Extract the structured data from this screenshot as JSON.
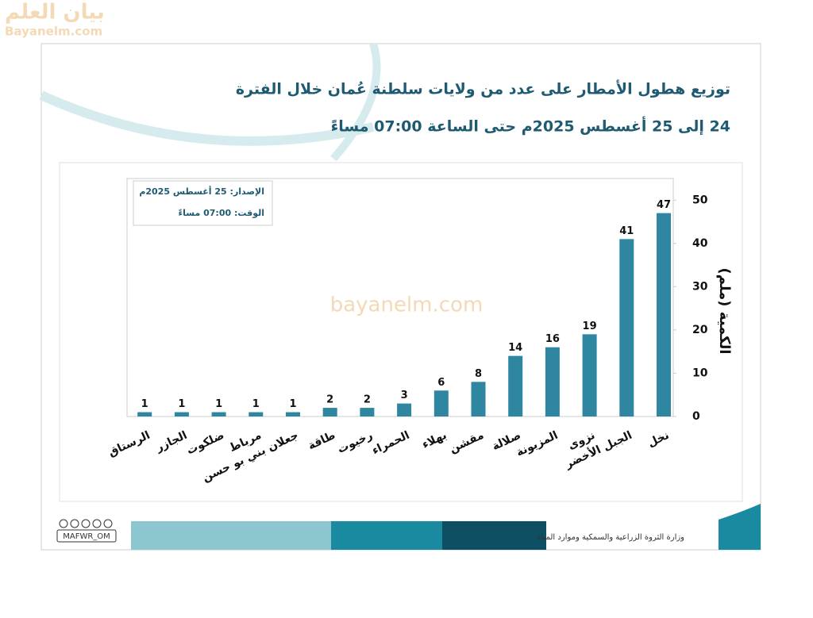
{
  "watermark": {
    "logo": "بيان العلم",
    "site": "Bayanelm.com",
    "center": "bayanelm.com"
  },
  "chart_data": {
    "type": "bar",
    "title": "توزيع هطول الأمطار على عدد من ولايات سلطنة عُمان خلال الفترة",
    "subtitle": "24 إلى 25 أغسطس 2025م حتى الساعة 07:00 مساءً",
    "info": [
      "الإصدار: 25 أغسطس 2025م",
      "الوقت:  07:00 مساءً"
    ],
    "y_label": "الكمية (ملم)",
    "categories": [
      "نخل",
      "الجبل الأخضر",
      "نزوى",
      "المزيونة",
      "صلالة",
      "مقشن",
      "بهلاء",
      "الحمراء",
      "رخيوت",
      "طاقة",
      "جعلان بني بو حسن",
      "مرباط",
      "ضلكوت",
      "الجازر",
      "الرستاق"
    ],
    "values": [
      47,
      41,
      19,
      16,
      14,
      8,
      6,
      3,
      2,
      2,
      1,
      1,
      1,
      1,
      1
    ],
    "color": "#2e86a0",
    "ylim": [
      0,
      55
    ],
    "yticks": [
      0,
      10,
      20,
      30,
      40,
      50
    ],
    "grid": false
  },
  "footer": {
    "ministry": "وزارة الثروة الزراعية والسمكية وموارد المياه",
    "handle": "MAFWR_OM"
  }
}
